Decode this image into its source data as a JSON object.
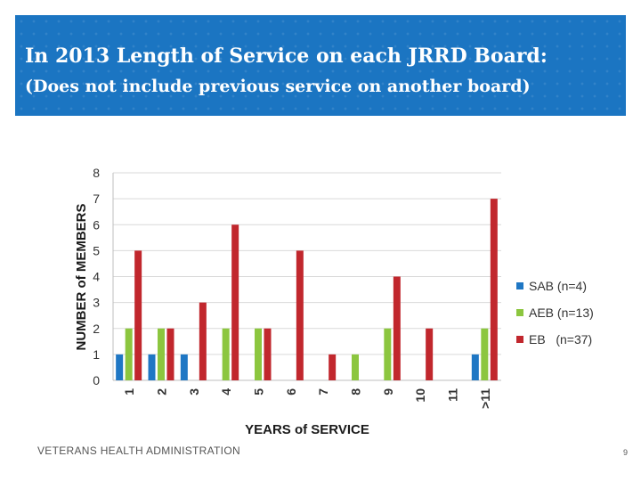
{
  "header": {
    "title_line1": "In 2013 Length of Service on each JRRD Board:",
    "title_line2": "(Does not include previous service on another board)"
  },
  "footer": {
    "organization": "VETERANS HEALTH ADMINISTRATION",
    "page_number": "9"
  },
  "chart_data": {
    "type": "bar",
    "title": "",
    "xlabel": "YEARS of SERVICE",
    "ylabel": "NUMBER of MEMBERS",
    "categories": [
      "1",
      "2",
      "3",
      "4",
      "5",
      "6",
      "7",
      "8",
      "9",
      "10",
      "11",
      ">11"
    ],
    "yticks": [
      "0",
      "1",
      "2",
      "3",
      "4",
      "5",
      "6",
      "7",
      "8"
    ],
    "ylim": [
      0,
      8
    ],
    "grid": true,
    "legend_position": "right",
    "series": [
      {
        "name": "SAB (n=4)",
        "color": "#1f77c4",
        "values": [
          1,
          1,
          1,
          0,
          0,
          0,
          0,
          0,
          0,
          0,
          0,
          1
        ]
      },
      {
        "name": "AEB (n=13)",
        "color": "#8cc63f",
        "values": [
          2,
          2,
          0,
          2,
          2,
          0,
          0,
          1,
          2,
          0,
          0,
          2
        ]
      },
      {
        "name": "EB   (n=37)",
        "color": "#c1272d",
        "values": [
          5,
          2,
          3,
          6,
          2,
          5,
          1,
          0,
          4,
          2,
          0,
          7
        ]
      }
    ]
  }
}
